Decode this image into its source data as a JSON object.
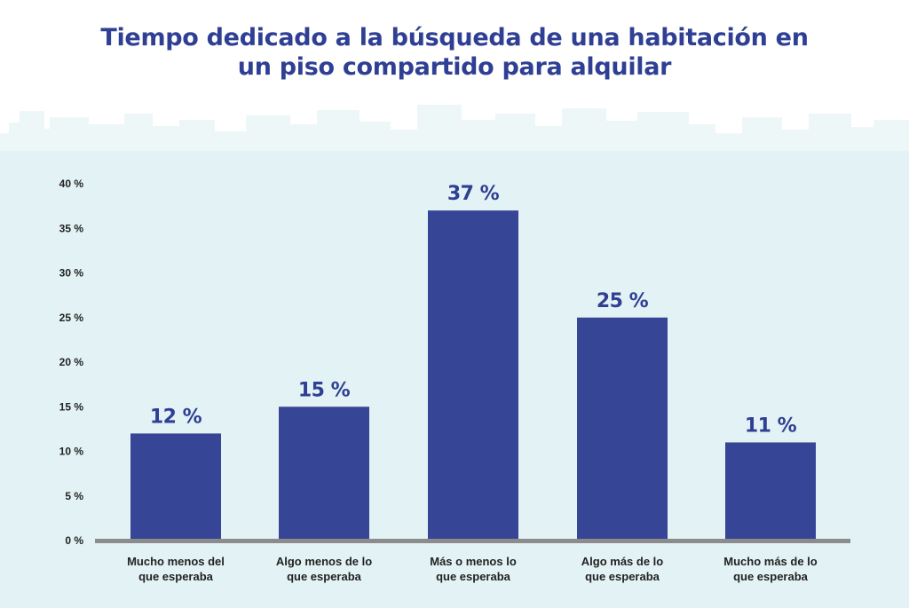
{
  "title_lines": [
    "Tiempo dedicado a la búsqueda de una habitación en",
    "un piso compartido para alquilar"
  ],
  "colors": {
    "bar": "#374596",
    "title": "#2f3f93",
    "background_band": "#e3f2f4",
    "skyline": "#eef7f8",
    "axis": "#8c8c8c"
  },
  "chart_data": {
    "type": "bar",
    "title": "Tiempo dedicado a la búsqueda de una habitación en un piso compartido para alquilar",
    "categories": [
      [
        "Mucho menos del",
        "que esperaba"
      ],
      [
        "Algo menos de lo",
        "que esperaba"
      ],
      [
        "Más o menos lo",
        "que esperaba"
      ],
      [
        "Algo más de lo",
        "que esperaba"
      ],
      [
        "Mucho más de lo",
        "que esperaba"
      ]
    ],
    "values": [
      12,
      15,
      37,
      25,
      11
    ],
    "value_labels": [
      "12 %",
      "15 %",
      "37 %",
      "25 %",
      "11 %"
    ],
    "ylim": [
      0,
      40
    ],
    "yticks": [
      0,
      5,
      10,
      15,
      20,
      25,
      30,
      35,
      40
    ],
    "ytick_labels": [
      "0 %",
      "5 %",
      "10 %",
      "15 %",
      "20 %",
      "25 %",
      "30 %",
      "35 %",
      "40 %"
    ],
    "xlabel": "",
    "ylabel": "",
    "grid": false,
    "legend": "none"
  }
}
